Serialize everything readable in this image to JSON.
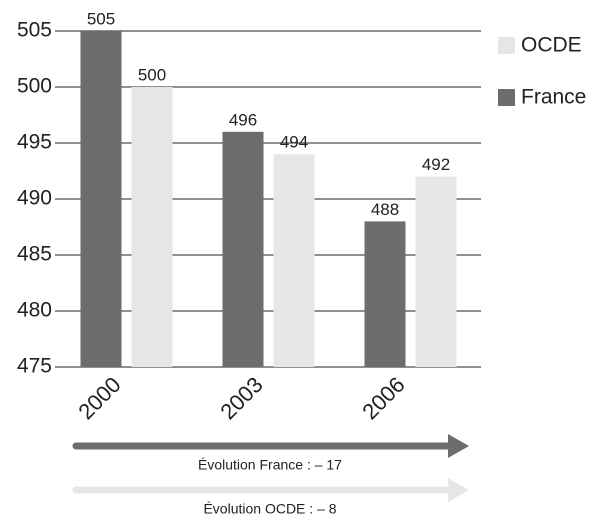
{
  "chart_data": {
    "type": "bar",
    "categories": [
      "2000",
      "2003",
      "2006"
    ],
    "series": [
      {
        "name": "France",
        "color": "#6d6d6d",
        "values": [
          505,
          496,
          488
        ]
      },
      {
        "name": "OCDE",
        "color": "#e6e6e6",
        "values": [
          500,
          494,
          492
        ]
      }
    ],
    "ylim": [
      475,
      505
    ],
    "yticks": [
      475,
      480,
      485,
      490,
      495,
      500,
      505
    ],
    "grid": true,
    "annotations": [
      "Évolution France : – 17",
      "Évolution OCDE : – 8"
    ]
  }
}
